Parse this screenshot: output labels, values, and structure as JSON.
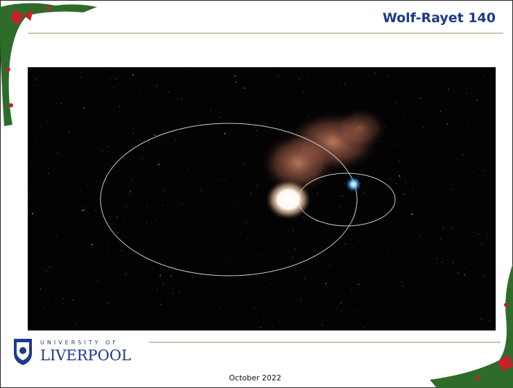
{
  "header": {
    "title": "Wolf-Rayet 140"
  },
  "footer": {
    "logo_top": "UNIVERSITY OF",
    "logo_bottom": "LIVERPOOL",
    "date": "October 2022"
  }
}
